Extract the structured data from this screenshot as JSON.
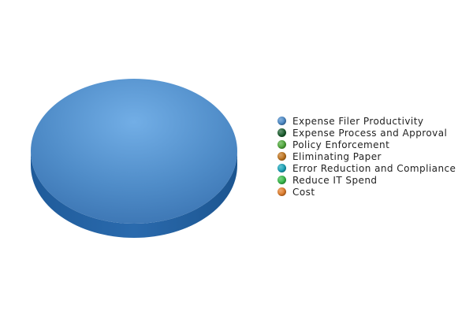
{
  "chart_data": {
    "type": "pie",
    "style": "3d",
    "title": "",
    "categories": [
      "Expense Filer Productivity",
      "Expense Process and Approval",
      "Policy Enforcement",
      "Eliminating Paper",
      "Error Reduction and Compliance",
      "Reduce IT Spend",
      "Cost"
    ],
    "values": [
      100,
      0,
      0,
      0,
      0,
      0,
      0
    ],
    "colors": [
      "#4a88c6",
      "#1b5e2e",
      "#4ea83a",
      "#c0741e",
      "#19a3b8",
      "#36b948",
      "#e07c2a"
    ],
    "legend_position": "right"
  }
}
